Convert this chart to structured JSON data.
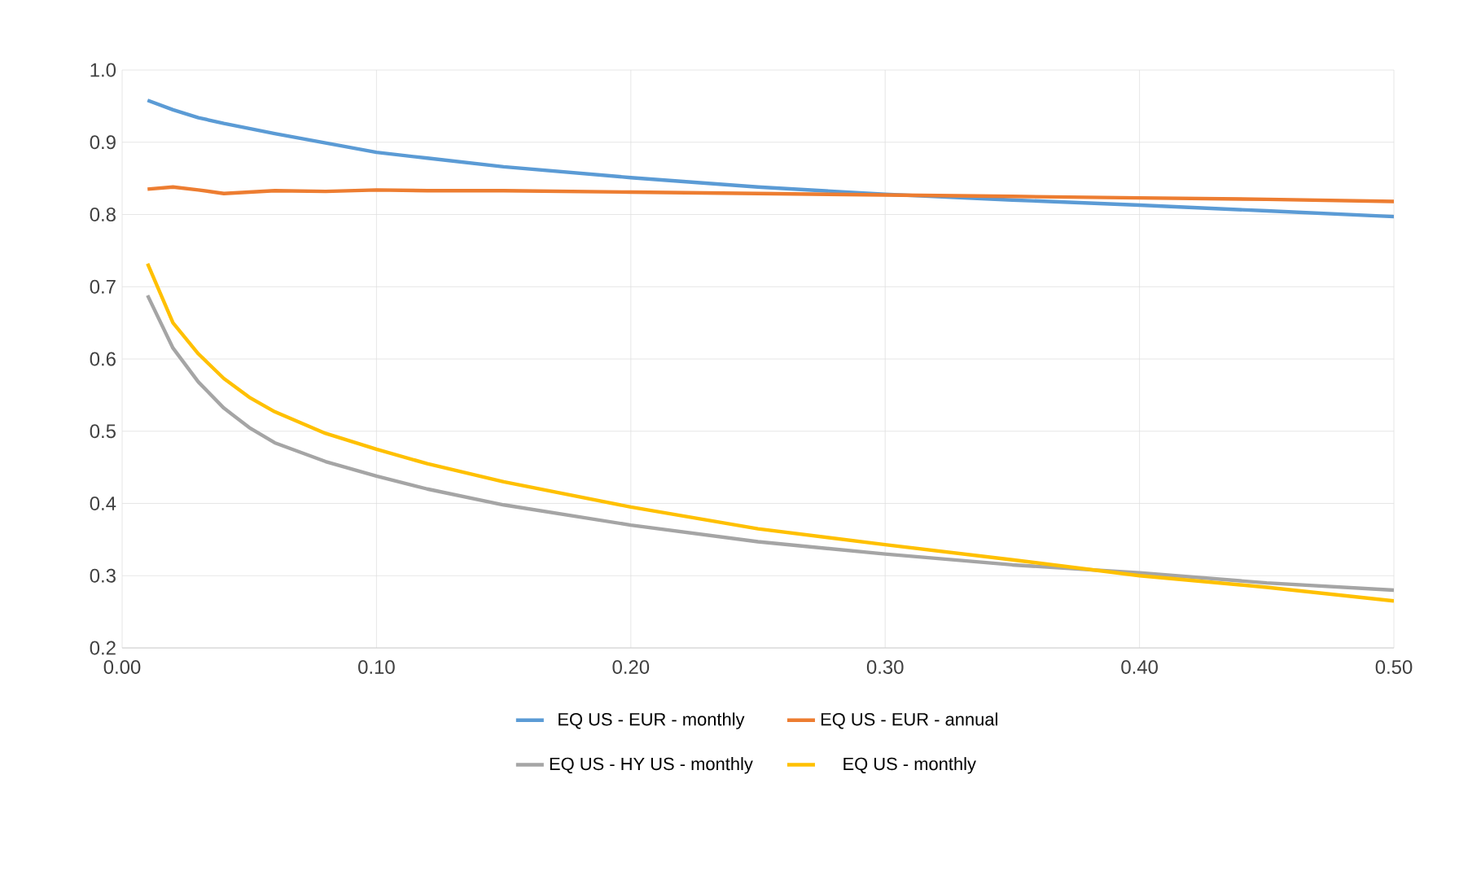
{
  "chart_data": {
    "type": "line",
    "x": [
      0.01,
      0.02,
      0.03,
      0.04,
      0.05,
      0.06,
      0.08,
      0.1,
      0.12,
      0.15,
      0.2,
      0.25,
      0.3,
      0.35,
      0.4,
      0.45,
      0.5
    ],
    "series": [
      {
        "name": "EQ US - EUR - monthly",
        "color": "#5b9bd5",
        "values": [
          0.958,
          0.945,
          0.934,
          0.926,
          0.919,
          0.912,
          0.899,
          0.886,
          0.878,
          0.866,
          0.851,
          0.838,
          0.828,
          0.82,
          0.813,
          0.805,
          0.797
        ]
      },
      {
        "name": "EQ US - EUR - annual",
        "color": "#ed7d31",
        "values": [
          0.835,
          0.838,
          0.834,
          0.829,
          0.831,
          0.833,
          0.832,
          0.834,
          0.833,
          0.833,
          0.831,
          0.829,
          0.827,
          0.825,
          0.823,
          0.821,
          0.818
        ]
      },
      {
        "name": "EQ US - HY US - monthly",
        "color": "#a5a5a5",
        "values": [
          0.688,
          0.615,
          0.568,
          0.532,
          0.505,
          0.484,
          0.458,
          0.438,
          0.42,
          0.398,
          0.37,
          0.347,
          0.33,
          0.315,
          0.304,
          0.29,
          0.28
        ]
      },
      {
        "name": "EQ US - monthly",
        "color": "#ffc000",
        "values": [
          0.732,
          0.65,
          0.607,
          0.573,
          0.547,
          0.527,
          0.497,
          0.475,
          0.455,
          0.43,
          0.395,
          0.365,
          0.343,
          0.322,
          0.3,
          0.284,
          0.265
        ]
      }
    ],
    "xlim": [
      0,
      0.5
    ],
    "xticks": [
      {
        "value": 0,
        "label": "0.00"
      },
      {
        "value": 0.1,
        "label": "0.10"
      },
      {
        "value": 0.2,
        "label": "0.20"
      },
      {
        "value": 0.3,
        "label": "0.30"
      },
      {
        "value": 0.4,
        "label": "0.40"
      },
      {
        "value": 0.5,
        "label": "0.50"
      }
    ],
    "ylim": [
      0.2,
      1.0
    ],
    "yticks": [
      {
        "value": 0.2,
        "label": "0.2"
      },
      {
        "value": 0.3,
        "label": "0.3"
      },
      {
        "value": 0.4,
        "label": "0.4"
      },
      {
        "value": 0.5,
        "label": "0.5"
      },
      {
        "value": 0.6,
        "label": "0.6"
      },
      {
        "value": 0.7,
        "label": "0.7"
      },
      {
        "value": 0.8,
        "label": "0.8"
      },
      {
        "value": 0.9,
        "label": "0.9"
      },
      {
        "value": 1.0,
        "label": "1.0"
      }
    ],
    "grid": true,
    "legend": "bottom",
    "marker": "none",
    "line_style": "solid"
  }
}
